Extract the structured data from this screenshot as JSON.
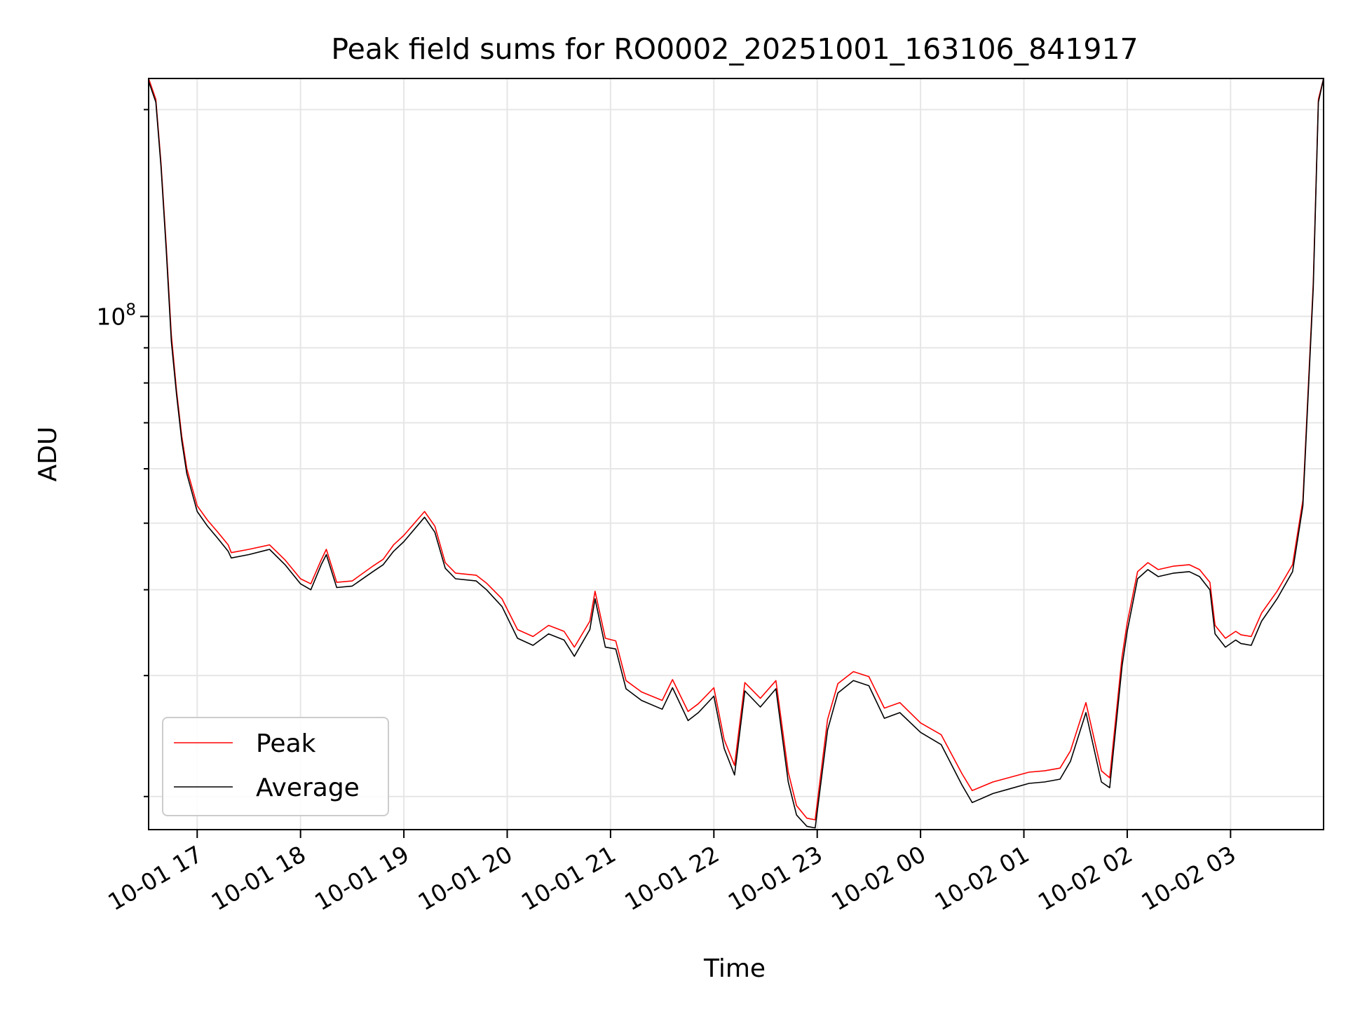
{
  "chart_data": {
    "type": "line",
    "title": "Peak field sums for RO0002_20251001_163106_841917",
    "xlabel": "Time",
    "ylabel": "ADU",
    "yscale": "log",
    "ylim": [
      17900000,
      222000000
    ],
    "ytick_label": {
      "base": "10",
      "exp": "8",
      "value": 100000000
    },
    "xlim_hours": [
      16.53,
      27.9
    ],
    "x_tick_labels": [
      "10-01 17",
      "10-01 18",
      "10-01 19",
      "10-01 20",
      "10-01 21",
      "10-01 22",
      "10-01 23",
      "10-02 00",
      "10-02 01",
      "10-02 02",
      "10-02 03"
    ],
    "x_tick_hours": [
      17,
      18,
      19,
      20,
      21,
      22,
      23,
      24,
      25,
      26,
      27
    ],
    "grid": true,
    "legend_position": "lower-left",
    "series": [
      {
        "name": "Peak",
        "color": "#ff0000"
      },
      {
        "name": "Average",
        "color": "#000000"
      }
    ],
    "x_hours": [
      16.53,
      16.6,
      16.65,
      16.7,
      16.75,
      16.8,
      16.85,
      16.9,
      17.0,
      17.1,
      17.2,
      17.3,
      17.33,
      17.5,
      17.7,
      17.85,
      18.0,
      18.1,
      18.2,
      18.25,
      18.35,
      18.5,
      18.7,
      18.8,
      18.9,
      19.0,
      19.2,
      19.3,
      19.4,
      19.5,
      19.7,
      19.8,
      19.95,
      20.1,
      20.25,
      20.4,
      20.55,
      20.65,
      20.8,
      20.85,
      20.95,
      21.05,
      21.15,
      21.3,
      21.5,
      21.6,
      21.75,
      21.85,
      22.0,
      22.1,
      22.2,
      22.3,
      22.45,
      22.6,
      22.72,
      22.8,
      22.9,
      22.98,
      23.1,
      23.2,
      23.35,
      23.5,
      23.65,
      23.8,
      24.0,
      24.2,
      24.4,
      24.5,
      24.7,
      24.85,
      25.05,
      25.2,
      25.35,
      25.45,
      25.6,
      25.75,
      25.83,
      25.95,
      26.0,
      26.1,
      26.2,
      26.3,
      26.45,
      26.6,
      26.7,
      26.8,
      26.85,
      26.95,
      27.05,
      27.1,
      27.2,
      27.3,
      27.45,
      27.6,
      27.7,
      27.8,
      27.85,
      27.9
    ],
    "average_values": [
      220000000,
      205000000,
      165000000,
      125000000,
      92000000,
      77000000,
      66000000,
      59000000,
      52000000,
      49500000,
      47500000,
      45500000,
      44500000,
      45000000,
      45800000,
      43500000,
      40800000,
      40000000,
      43500000,
      45000000,
      40300000,
      40500000,
      42500000,
      43500000,
      45500000,
      47000000,
      51000000,
      48500000,
      43000000,
      41500000,
      41200000,
      40000000,
      37800000,
      34000000,
      33200000,
      34500000,
      33800000,
      32000000,
      35000000,
      38800000,
      33000000,
      32800000,
      28700000,
      27600000,
      26800000,
      28800000,
      25800000,
      26500000,
      28000000,
      23500000,
      21500000,
      28500000,
      27000000,
      28700000,
      21000000,
      18800000,
      18100000,
      18000000,
      25000000,
      28300000,
      29500000,
      29000000,
      26000000,
      26500000,
      24800000,
      23800000,
      20800000,
      19600000,
      20200000,
      20500000,
      20900000,
      21000000,
      21200000,
      22500000,
      26500000,
      21000000,
      20600000,
      31000000,
      34800000,
      41500000,
      42800000,
      41800000,
      42300000,
      42500000,
      41800000,
      40000000,
      34500000,
      33000000,
      33800000,
      33400000,
      33200000,
      36000000,
      38800000,
      42500000,
      53000000,
      110000000,
      205000000,
      222000000
    ],
    "peak_values": [
      222000000,
      207000000,
      167000000,
      127000000,
      94000000,
      78000000,
      67000000,
      60000000,
      53000000,
      50500000,
      48500000,
      46500000,
      45300000,
      45800000,
      46500000,
      44200000,
      41500000,
      40800000,
      44200000,
      45800000,
      41000000,
      41200000,
      43300000,
      44300000,
      46500000,
      48000000,
      52000000,
      49500000,
      43800000,
      42300000,
      42000000,
      40900000,
      38800000,
      35000000,
      34200000,
      35500000,
      34800000,
      33000000,
      36000000,
      39800000,
      34000000,
      33700000,
      29500000,
      28400000,
      27600000,
      29600000,
      26600000,
      27300000,
      28800000,
      24200000,
      22200000,
      29300000,
      27800000,
      29500000,
      21700000,
      19400000,
      18600000,
      18500000,
      25900000,
      29200000,
      30400000,
      29900000,
      26900000,
      27400000,
      25600000,
      24600000,
      21600000,
      20400000,
      21000000,
      21300000,
      21700000,
      21800000,
      22000000,
      23300000,
      27400000,
      21800000,
      21300000,
      32000000,
      35800000,
      42500000,
      43800000,
      42800000,
      43300000,
      43500000,
      42800000,
      41000000,
      35500000,
      34000000,
      34800000,
      34400000,
      34200000,
      37000000,
      39800000,
      43500000,
      54000000,
      112000000,
      207000000,
      222000000
    ]
  }
}
